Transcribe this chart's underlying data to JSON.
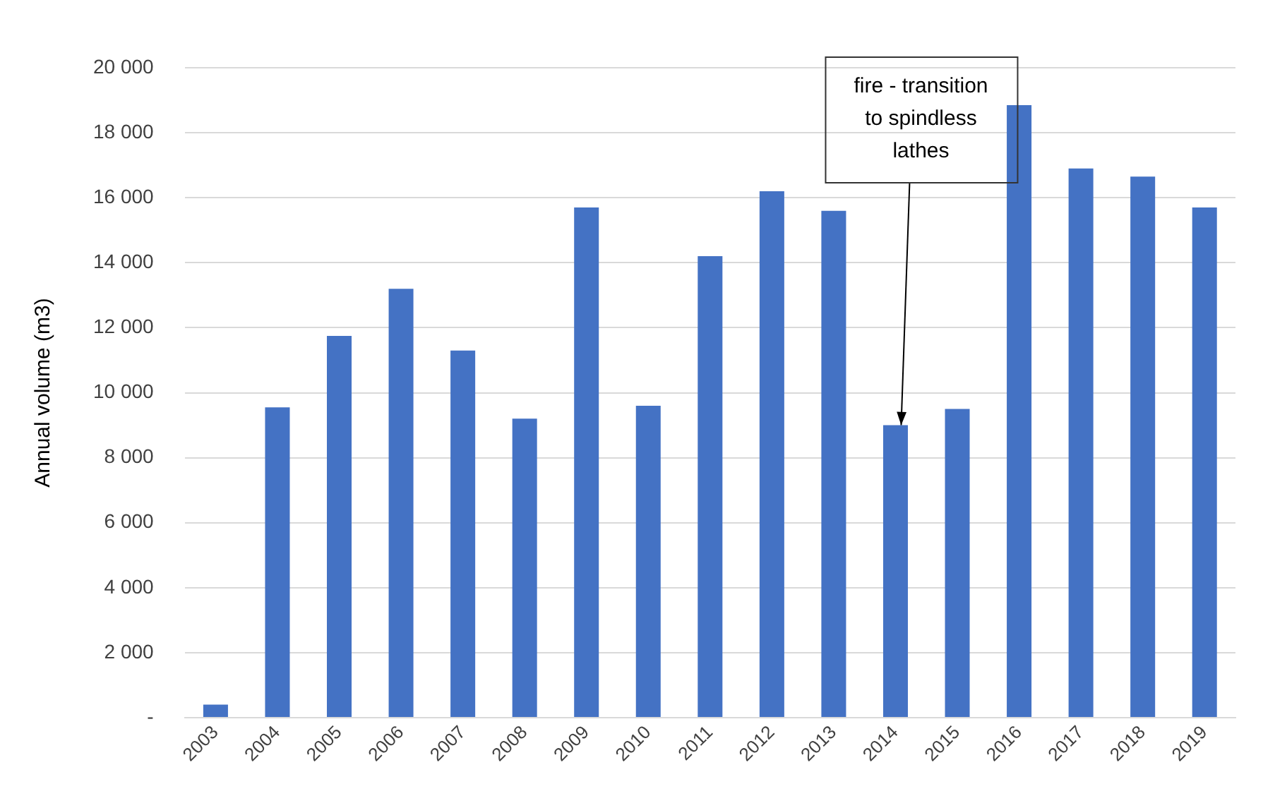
{
  "chart_data": {
    "type": "bar",
    "ylabel": "Annual volume (m3)",
    "categories": [
      "2003",
      "2004",
      "2005",
      "2006",
      "2007",
      "2008",
      "2009",
      "2010",
      "2011",
      "2012",
      "2013",
      "2014",
      "2015",
      "2016",
      "2017",
      "2018",
      "2019"
    ],
    "values": [
      400,
      9550,
      11750,
      13200,
      11300,
      9200,
      15700,
      9600,
      14200,
      16200,
      15600,
      9000,
      9500,
      18850,
      16900,
      16650,
      15700
    ],
    "color": "#4472c4",
    "ylim": [
      0,
      20000
    ],
    "yticks": [
      {
        "value": 0,
        "label": "-"
      },
      {
        "value": 2000,
        "label": "2 000"
      },
      {
        "value": 4000,
        "label": "4 000"
      },
      {
        "value": 6000,
        "label": "6 000"
      },
      {
        "value": 8000,
        "label": "8 000"
      },
      {
        "value": 10000,
        "label": "10 000"
      },
      {
        "value": 12000,
        "label": "12 000"
      },
      {
        "value": 14000,
        "label": "14 000"
      },
      {
        "value": 16000,
        "label": "16 000"
      },
      {
        "value": 18000,
        "label": "18 000"
      },
      {
        "value": 20000,
        "label": "20 000"
      }
    ],
    "grid": "y",
    "legend": false,
    "annotations": [
      {
        "text": "fire - transition to spindless lathes",
        "x": "2014",
        "y": 9000
      }
    ]
  }
}
